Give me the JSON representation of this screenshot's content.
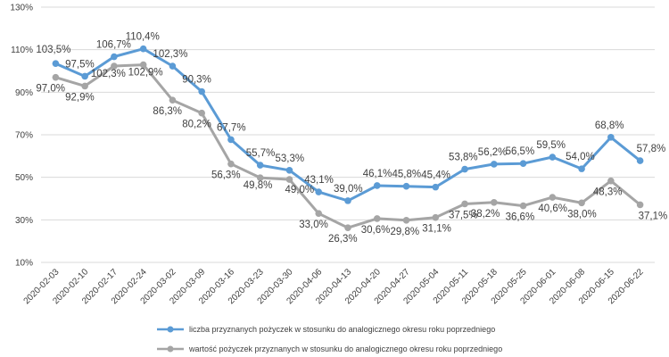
{
  "chart_data": {
    "type": "line",
    "x": [
      "2020-02-03",
      "2020-02-10",
      "2020-02-17",
      "2020-02-24",
      "2020-03-02",
      "2020-03-09",
      "2020-03-16",
      "2020-03-23",
      "2020-03-30",
      "2020-04-06",
      "2020-04-13",
      "2020-04-20",
      "2020-04-27",
      "2020-05-04",
      "2020-05-11",
      "2020-05-18",
      "2020-05-25",
      "2020-06-01",
      "2020-06-08",
      "2020-06-15",
      "2020-06-22"
    ],
    "y_ticks": [
      "10%",
      "30%",
      "50%",
      "70%",
      "90%",
      "110%",
      "130%"
    ],
    "ylim": [
      10,
      130
    ],
    "grid": true,
    "legend_position": "bottom-center",
    "series": [
      {
        "name": "liczba przyznanych pożyczek w stosunku do analogicznego okresu roku poprzedniego",
        "color": "#5b9bd5",
        "values": [
          103.5,
          97.5,
          106.7,
          110.4,
          102.3,
          90.3,
          67.7,
          55.7,
          53.3,
          43.1,
          39.0,
          46.1,
          45.8,
          45.4,
          53.8,
          56.2,
          56.5,
          59.5,
          54.0,
          68.8,
          57.8
        ],
        "labels": [
          "103,5%",
          "97,5%",
          "106,7%",
          "110,4%",
          "102,3%",
          "90,3%",
          "67,7%",
          "55,7%",
          "53,3%",
          "43,1%",
          "39,0%",
          "46,1%",
          "45,8%",
          "45,4%",
          "53,8%",
          "56,2%",
          "56,5%",
          "59,5%",
          "54,0%",
          "68,8%",
          "57,8%"
        ]
      },
      {
        "name": "wartość pożyczek przyznanych w stosunku do analogicznego okresu roku poprzedniego",
        "color": "#a5a5a5",
        "values": [
          97.0,
          92.9,
          102.3,
          102.9,
          86.3,
          80.2,
          56.3,
          49.8,
          49.0,
          33.0,
          26.3,
          30.6,
          29.8,
          31.1,
          37.5,
          38.2,
          36.6,
          40.6,
          38.0,
          48.3,
          37.1
        ],
        "labels": [
          "97,0%",
          "92,9%",
          "102,3%",
          "102,9%",
          "86,3%",
          "80,2%",
          "56,3%",
          "49,8%",
          "49,0%",
          "33,0%",
          "26,3%",
          "30,6%",
          "29,8%",
          "31,1%",
          "37,5%",
          "38,2%",
          "36,6%",
          "40,6%",
          "38,0%",
          "48,3%",
          "37,1%"
        ]
      }
    ]
  }
}
